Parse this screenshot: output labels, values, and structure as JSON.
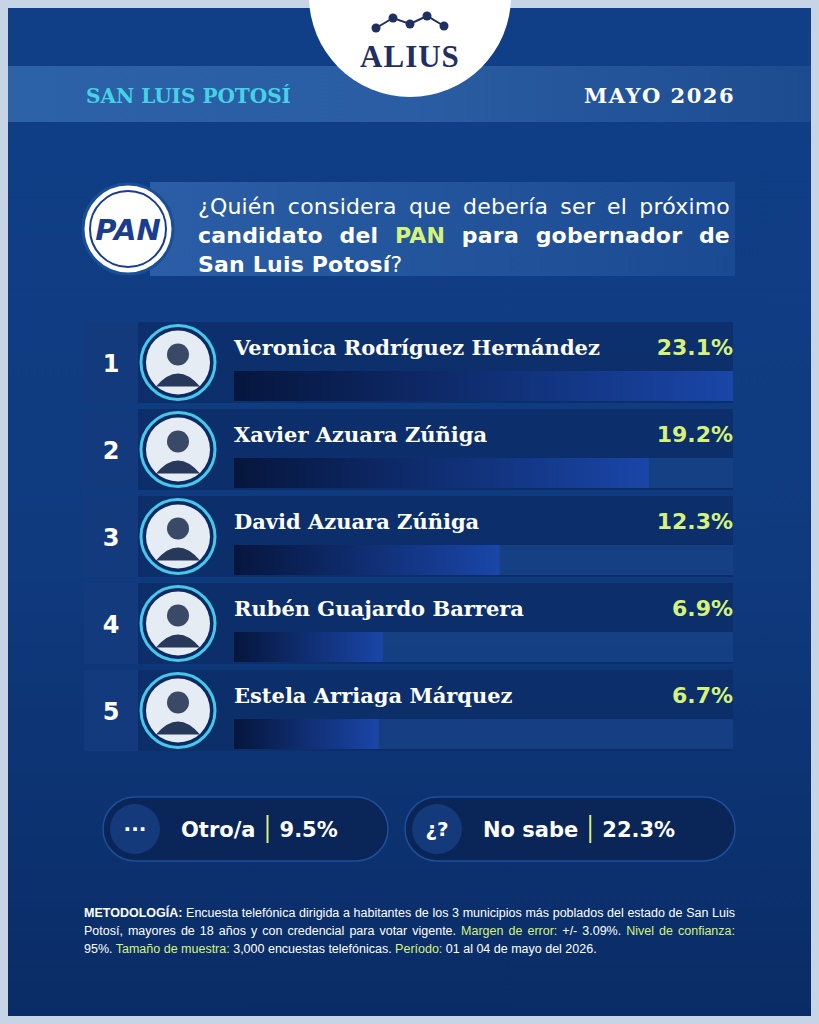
{
  "header": {
    "brand": "ALIUS",
    "region": "SAN LUIS POTOSÍ",
    "date": "MAYO 2026",
    "party": "PAN"
  },
  "question": [
    {
      "text": "¿Quién considera que debería ser el próximo ",
      "style": "normal"
    },
    {
      "text": "candidato del ",
      "style": "bold"
    },
    {
      "text": "PAN",
      "style": "accent"
    },
    {
      "text": " para gobernador de San Luis Potosí",
      "style": "bold"
    },
    {
      "text": "?",
      "style": "normal"
    }
  ],
  "chart_data": {
    "type": "bar",
    "orientation": "horizontal",
    "categories": [
      "Veronica Rodríguez Hernández",
      "Xavier Azuara Zúñiga",
      "David Azuara Zúñiga",
      "Rubén Guajardo Barrera",
      "Estela Arriaga Márquez"
    ],
    "values": [
      23.1,
      19.2,
      12.3,
      6.9,
      6.7
    ],
    "value_labels": [
      "23.1%",
      "19.2%",
      "12.3%",
      "6.9%",
      "6.7%"
    ],
    "xlim": [
      0,
      23.1
    ],
    "data_labels": true,
    "tick_labels": false,
    "grid": false,
    "color": "#1a46a8"
  },
  "rank_labels": [
    "1",
    "2",
    "3",
    "4",
    "5"
  ],
  "extra": [
    {
      "icon": "···",
      "label": "Otro/a",
      "value_label": "9.5%"
    },
    {
      "icon": "¿?",
      "label": "No sabe",
      "value_label": "22.3%"
    }
  ],
  "methodology": [
    {
      "text": "METODOLOGÍA:",
      "style": "bold"
    },
    {
      "text": " Encuesta telefónica dirigida a habitantes de los 3 municipios más poblados del estado de San Luis Potosí, mayores de 18 años y con credencial para votar vigente. ",
      "style": "normal"
    },
    {
      "text": "Margen de error:",
      "style": "accent"
    },
    {
      "text": " +/- 3.09%. ",
      "style": "normal"
    },
    {
      "text": "Nivel de confianza:",
      "style": "accent"
    },
    {
      "text": " 95%. ",
      "style": "normal"
    },
    {
      "text": "Tamaño de muestra:",
      "style": "accent"
    },
    {
      "text": " 3,000 encuestas telefónicas. ",
      "style": "normal"
    },
    {
      "text": "Período:",
      "style": "accent"
    },
    {
      "text": " 01 al 04 de mayo del 2026.",
      "style": "normal"
    }
  ]
}
